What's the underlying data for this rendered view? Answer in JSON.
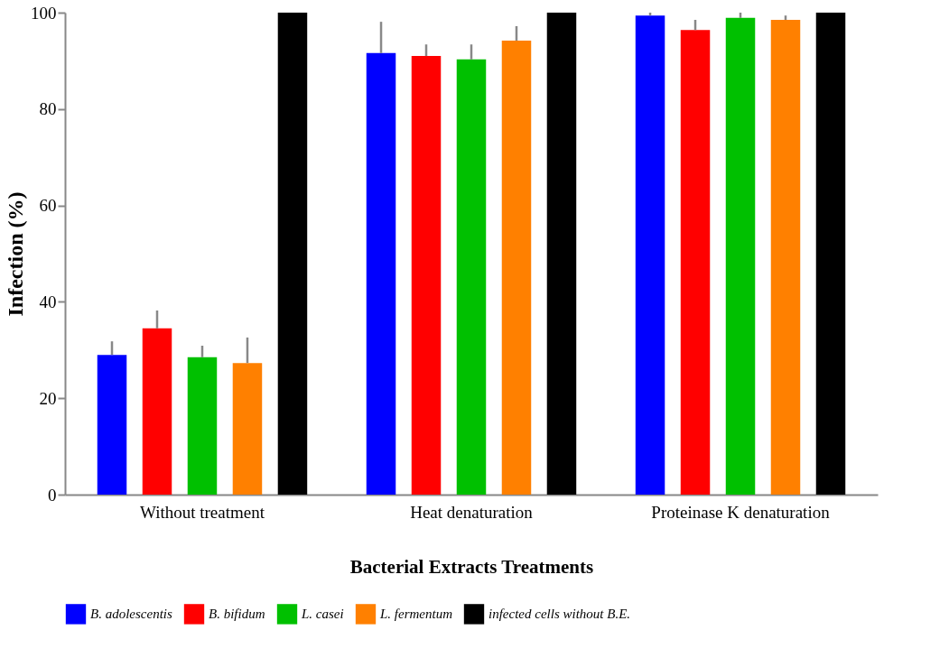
{
  "chart_data": {
    "type": "bar",
    "xlabel": "Bacterial Extracts Treatments",
    "ylabel": "Infection (%)",
    "categories": [
      "Without treatment",
      "Heat denaturation",
      "Proteinase K denaturation"
    ],
    "series": [
      {
        "name": "B. adolescentis",
        "color": "#0000ff",
        "values": [
          29.0,
          91.6,
          99.4
        ],
        "errors": [
          [
            29.0,
            31.8
          ],
          [
            91.6,
            98.1
          ],
          [
            99.4,
            100
          ]
        ]
      },
      {
        "name": "B. bifidum",
        "color": "#ff0000",
        "values": [
          34.5,
          91.0,
          96.4
        ],
        "errors": [
          [
            34.5,
            38.2
          ],
          [
            91.0,
            93.4
          ],
          [
            96.4,
            98.5
          ]
        ]
      },
      {
        "name": "L. casei",
        "color": "#00c000",
        "values": [
          28.5,
          90.3,
          98.9
        ],
        "errors": [
          [
            28.5,
            30.9
          ],
          [
            90.3,
            93.4
          ],
          [
            98.9,
            100
          ]
        ]
      },
      {
        "name": "L. fermentum",
        "color": "#ff8000",
        "values": [
          27.3,
          94.2,
          98.5
        ],
        "errors": [
          [
            27.3,
            32.6
          ],
          [
            94.2,
            97.2
          ],
          [
            98.5,
            99.4
          ]
        ]
      },
      {
        "name": "infected cells without B.E.",
        "color": "#000000",
        "values": [
          100,
          100,
          100
        ]
      }
    ],
    "ylim": [
      0,
      100
    ],
    "yticks": [
      0,
      20,
      40,
      60,
      80,
      100
    ],
    "grid": false,
    "legend": "bottom"
  }
}
